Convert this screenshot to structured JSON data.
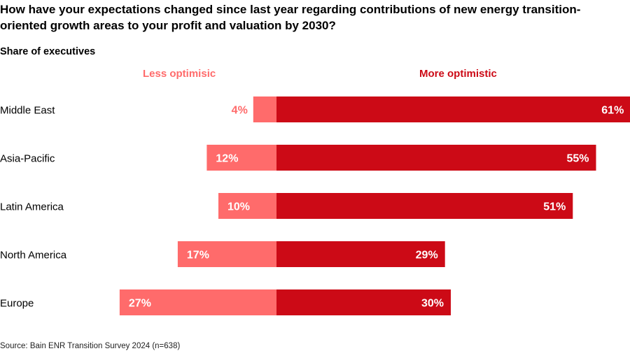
{
  "title": "How have your expectations changed since last year regarding contributions of new energy transition-oriented growth areas to your profit and valuation by 2030?",
  "subtitle": "Share of executives",
  "source": "Source: Bain ENR Transition Survey 2024 (n=638)",
  "chart_data": {
    "type": "bar",
    "orientation": "horizontal-diverging",
    "categories": [
      "Middle East",
      "Asia-Pacific",
      "Latin America",
      "North America",
      "Europe"
    ],
    "series": [
      {
        "name": "Less optimisic",
        "values": [
          4,
          12,
          10,
          17,
          27
        ],
        "labels": [
          "4%",
          "12%",
          "10%",
          "17%",
          "27%"
        ],
        "color": "#ff6b6b"
      },
      {
        "name": "More optimistic",
        "values": [
          61,
          55,
          51,
          29,
          30
        ],
        "labels": [
          "61%",
          "55%",
          "51%",
          "29%",
          "30%"
        ],
        "color": "#cc0a16"
      }
    ],
    "unit": "%",
    "grid": false,
    "legend": "top"
  }
}
